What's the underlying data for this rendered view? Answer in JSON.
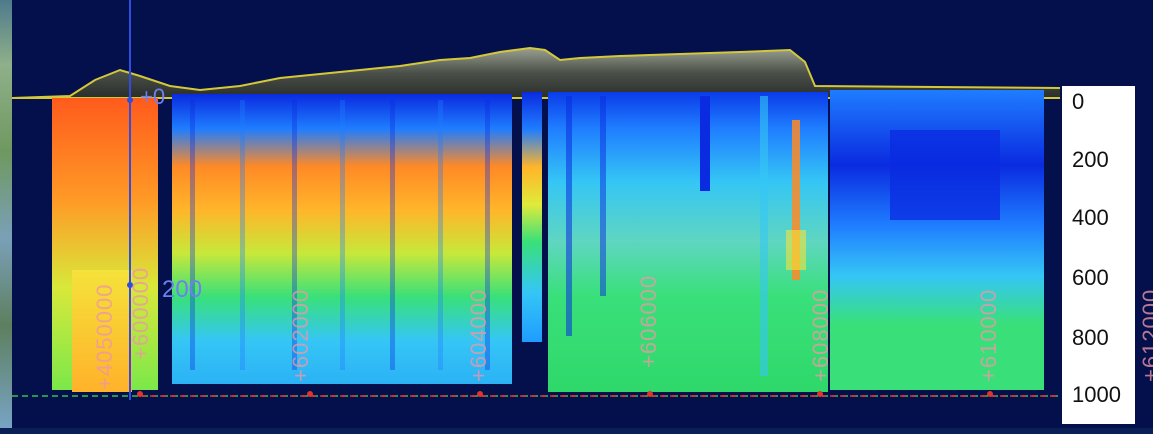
{
  "map": {
    "depth_scale": [
      {
        "value": 0,
        "label": "0"
      },
      {
        "value": 200,
        "label": "200"
      },
      {
        "value": 400,
        "label": "400"
      },
      {
        "value": 600,
        "label": "600"
      },
      {
        "value": 800,
        "label": "800"
      },
      {
        "value": 1000,
        "label": "1000"
      }
    ],
    "eastings": [
      "+4050000",
      "+600000",
      "+602000",
      "+604000",
      "+606000",
      "+608000",
      "+610000",
      "+612000"
    ],
    "probe_labels": {
      "top": "+0",
      "lower": "200"
    },
    "colors": {
      "background": "#03104c",
      "terrain_outline": "#d4c83a",
      "axis_line": "#2f4ee0",
      "baseline_dots": "#e0352c",
      "scale_panel": "#ffffff",
      "easting_text": "#ec96a8"
    },
    "color_ramp": [
      "#0a2be0",
      "#1f7dff",
      "#35c6f5",
      "#39e07a",
      "#a7e83a",
      "#f5e23a",
      "#ff9a26",
      "#ff5b1c"
    ]
  }
}
